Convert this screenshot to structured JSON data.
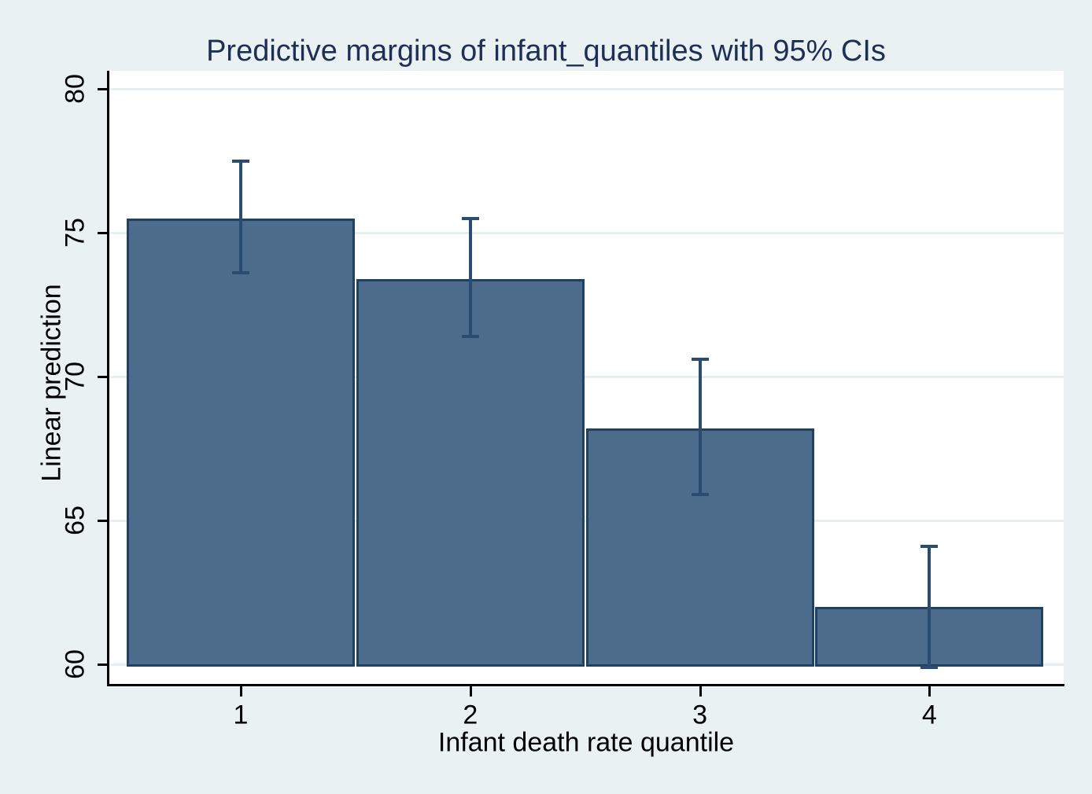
{
  "figure": {
    "title": "Predictive margins of infant_quantiles with 95% CIs",
    "x_axis": {
      "label": "Infant death rate quantile",
      "tick_labels": [
        "1",
        "2",
        "3",
        "4"
      ]
    },
    "y_axis": {
      "label": "Linear prediction",
      "tick_labels": [
        "60",
        "65",
        "70",
        "75",
        "80"
      ]
    }
  },
  "chart_data": {
    "type": "bar",
    "title": "Predictive margins of infant_quantiles with 95% CIs",
    "xlabel": "Infant death rate quantile",
    "ylabel": "Linear prediction",
    "categories": [
      1,
      2,
      3,
      4
    ],
    "values": [
      75.5,
      73.4,
      68.2,
      62.0
    ],
    "ci_low": [
      73.6,
      71.4,
      65.9,
      59.9
    ],
    "ci_high": [
      77.5,
      75.5,
      70.6,
      64.1
    ],
    "yticks": [
      60,
      65,
      70,
      75,
      80
    ],
    "ylim": [
      59.3,
      80.6
    ],
    "xlim": [
      0.5,
      4.5
    ],
    "grid": true,
    "legend": "none",
    "error_bars": "95% CI"
  },
  "colors": {
    "background": "#eaf1f3",
    "plot_background": "#ffffff",
    "bar_fill": "#4d6c8c",
    "bar_border": "#1f4164",
    "error_bar": "#2a4c70",
    "gridline": "#e7eef2",
    "title_text": "#1f2e54",
    "axis_text": "#000000",
    "axis_line": "#000000"
  }
}
